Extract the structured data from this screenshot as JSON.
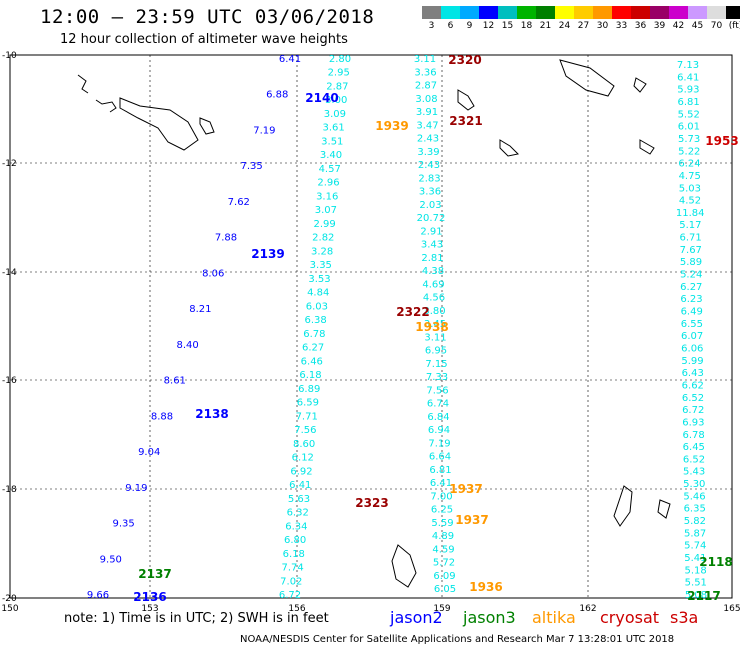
{
  "header": {
    "title": "12:00 — 23:59 UTC 03/06/2018",
    "subtitle": "12 hour collection of altimeter wave heights"
  },
  "colorbar": {
    "colors": [
      "#7f7f7f",
      "#00e5e5",
      "#00aaff",
      "#0000ff",
      "#00bfbf",
      "#00b400",
      "#008000",
      "#ffff00",
      "#ffcc00",
      "#ff9900",
      "#ff0000",
      "#cc0000",
      "#990066",
      "#cc00cc",
      "#cc99ff",
      "#dddddd",
      "#000000"
    ],
    "labels": [
      "3",
      "6",
      "9",
      "12",
      "15",
      "18",
      "21",
      "24",
      "27",
      "30",
      "33",
      "36",
      "39",
      "42",
      "45",
      "70",
      "(ft)"
    ]
  },
  "axes": {
    "x_ticks": [
      "150",
      "153",
      "156",
      "159",
      "162",
      "165"
    ],
    "y_ticks": [
      "-10",
      "-12",
      "-14",
      "-16",
      "-18",
      "-20"
    ]
  },
  "tracks": [
    {
      "name": "track-jason2",
      "color": "#0000ff",
      "values": [
        "6.41",
        "6.88",
        "7.19",
        "7.35",
        "7.62",
        "7.88",
        "8.06",
        "8.21",
        "8.40",
        "8.61",
        "8.88",
        "9.04",
        "9.19",
        "9.35",
        "9.50",
        "9.66"
      ]
    },
    {
      "name": "track-center",
      "color": "#00e5e5",
      "values": [
        "2.80",
        "2.95",
        "2.87",
        "3.00",
        "3.09",
        "3.61",
        "3.51",
        "3.40",
        "4.57",
        "2.96",
        "3.16",
        "3.07",
        "2.99",
        "2.82",
        "3.28",
        "3.35",
        "3.53",
        "4.84",
        "6.03",
        "6.38",
        "6.78",
        "6.27",
        "6.46",
        "6.18",
        "6.89",
        "6.59",
        "7.71",
        "7.56",
        "8.60",
        "6.12",
        "6.92",
        "6.41",
        "5.63",
        "6.32",
        "6.34",
        "6.80",
        "6.18",
        "7.74",
        "7.02",
        "6.72"
      ]
    },
    {
      "name": "track-right",
      "color": "#00e5e5",
      "values": [
        "3.11",
        "3.36",
        "2.87",
        "3.08",
        "3.91",
        "3.47",
        "2.43",
        "3.39",
        "2.43",
        "2.83",
        "3.36",
        "2.03",
        "20.72",
        "2.91",
        "3.43",
        "2.81",
        "4.38",
        "4.69",
        "4.56",
        "3.80",
        "3.45",
        "3.11",
        "6.95",
        "7.15",
        "7.33",
        "7.56",
        "6.74",
        "6.84",
        "6.94",
        "7.19",
        "6.64",
        "6.81",
        "6.41",
        "7.00",
        "6.25",
        "5.59",
        "4.89",
        "4.59",
        "5.72",
        "6.09",
        "6.05"
      ]
    },
    {
      "name": "track-east",
      "color": "#00e5e5",
      "values": [
        "7.13",
        "6.41",
        "5.93",
        "6.81",
        "5.52",
        "6.01",
        "5.73",
        "5.22",
        "6.24",
        "4.75",
        "5.03",
        "4.52",
        "11.84",
        "5.17",
        "6.71",
        "7.67",
        "5.89",
        "5.24",
        "6.27",
        "6.23",
        "6.49",
        "6.55",
        "6.07",
        "6.06",
        "5.99",
        "6.43",
        "6.62",
        "6.52",
        "6.72",
        "6.93",
        "6.78",
        "6.45",
        "6.52",
        "5.43",
        "5.30",
        "5.46",
        "6.35",
        "5.82",
        "5.87",
        "5.74",
        "5.41",
        "5.18",
        "5.51",
        "5.08"
      ]
    }
  ],
  "pass_labels": [
    {
      "text": "2320",
      "color": "#990000"
    },
    {
      "text": "2140",
      "color": "#0000ff"
    },
    {
      "text": "1939",
      "color": "#ff9900"
    },
    {
      "text": "2321",
      "color": "#990000"
    },
    {
      "text": "1953",
      "color": "#cc0000"
    },
    {
      "text": "2139",
      "color": "#0000ff"
    },
    {
      "text": "2322",
      "color": "#990000"
    },
    {
      "text": "1938",
      "color": "#ff9900"
    },
    {
      "text": "2138",
      "color": "#0000ff"
    },
    {
      "text": "1937",
      "color": "#ff9900"
    },
    {
      "text": "2323",
      "color": "#990000"
    },
    {
      "text": "1937",
      "color": "#ff9900"
    },
    {
      "text": "2137",
      "color": "#008000"
    },
    {
      "text": "2136",
      "color": "#0000ff"
    },
    {
      "text": "1936",
      "color": "#ff9900"
    },
    {
      "text": "2118",
      "color": "#008000"
    },
    {
      "text": "2117",
      "color": "#008000"
    }
  ],
  "footer": {
    "note": "note:  1) Time is in UTC;  2) SWH is in feet",
    "legend": [
      {
        "label": "jason2",
        "color": "#0000ff"
      },
      {
        "label": "jason3",
        "color": "#008000"
      },
      {
        "label": "altika",
        "color": "#ff9900"
      },
      {
        "label": "cryosat",
        "color": "#cc0000"
      },
      {
        "label": "s3a",
        "color": "#cc0000"
      }
    ],
    "credit": "NOAA/NESDIS Center for Satellite Applications and Research    Mar  7 13:28:01 UTC 2018"
  }
}
